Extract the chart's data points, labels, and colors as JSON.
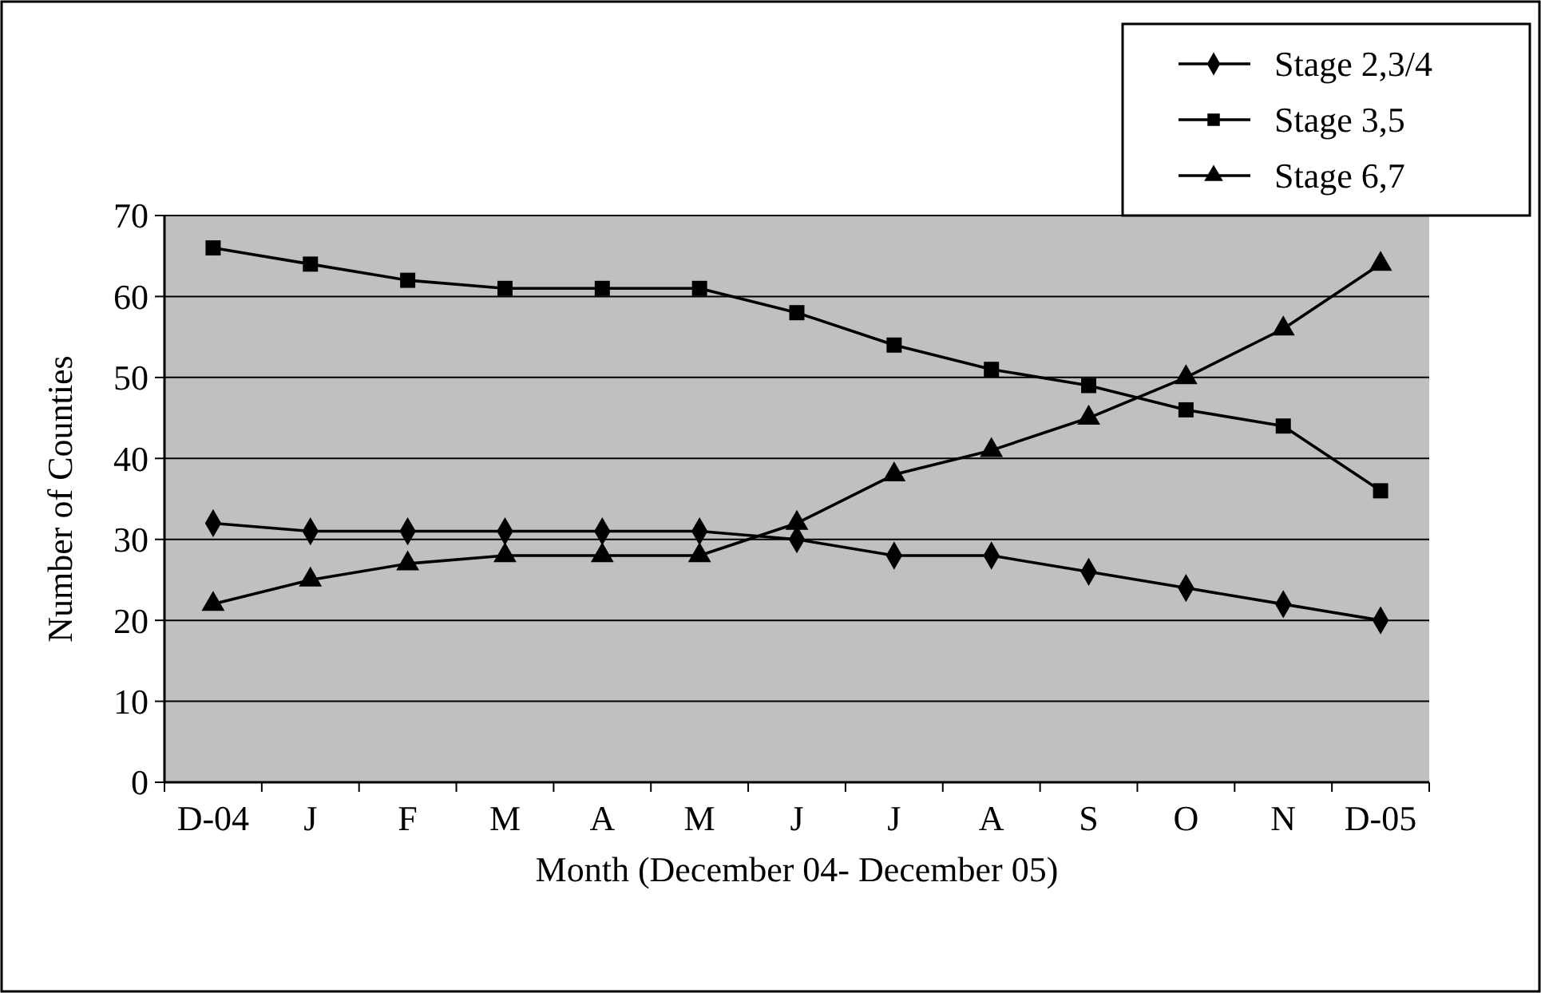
{
  "chart_data": {
    "type": "line",
    "xlabel": "Month (December 04- December 05)",
    "ylabel": "Number of Counties",
    "categories": [
      "D-04",
      "J",
      "F",
      "M",
      "A",
      "M",
      "J",
      "J",
      "A",
      "S",
      "O",
      "N",
      "D-05"
    ],
    "series": [
      {
        "name": "Stage 2,3/4",
        "color": "#000000",
        "marker": "diamond",
        "values": [
          32,
          31,
          31,
          31,
          31,
          31,
          30,
          28,
          28,
          26,
          24,
          22,
          20
        ]
      },
      {
        "name": "Stage 3,5",
        "color": "#000000",
        "marker": "square",
        "values": [
          66,
          64,
          62,
          61,
          61,
          61,
          58,
          54,
          51,
          49,
          46,
          44,
          36
        ]
      },
      {
        "name": "Stage 6,7",
        "color": "#000000",
        "marker": "triangle",
        "values": [
          22,
          25,
          27,
          28,
          28,
          28,
          32,
          38,
          41,
          45,
          50,
          56,
          64
        ]
      }
    ],
    "ylim": [
      0,
      70
    ],
    "yticks": [
      0,
      10,
      20,
      30,
      40,
      50,
      60,
      70
    ],
    "grid": "y",
    "legend": "top right",
    "line_style": "solid"
  }
}
